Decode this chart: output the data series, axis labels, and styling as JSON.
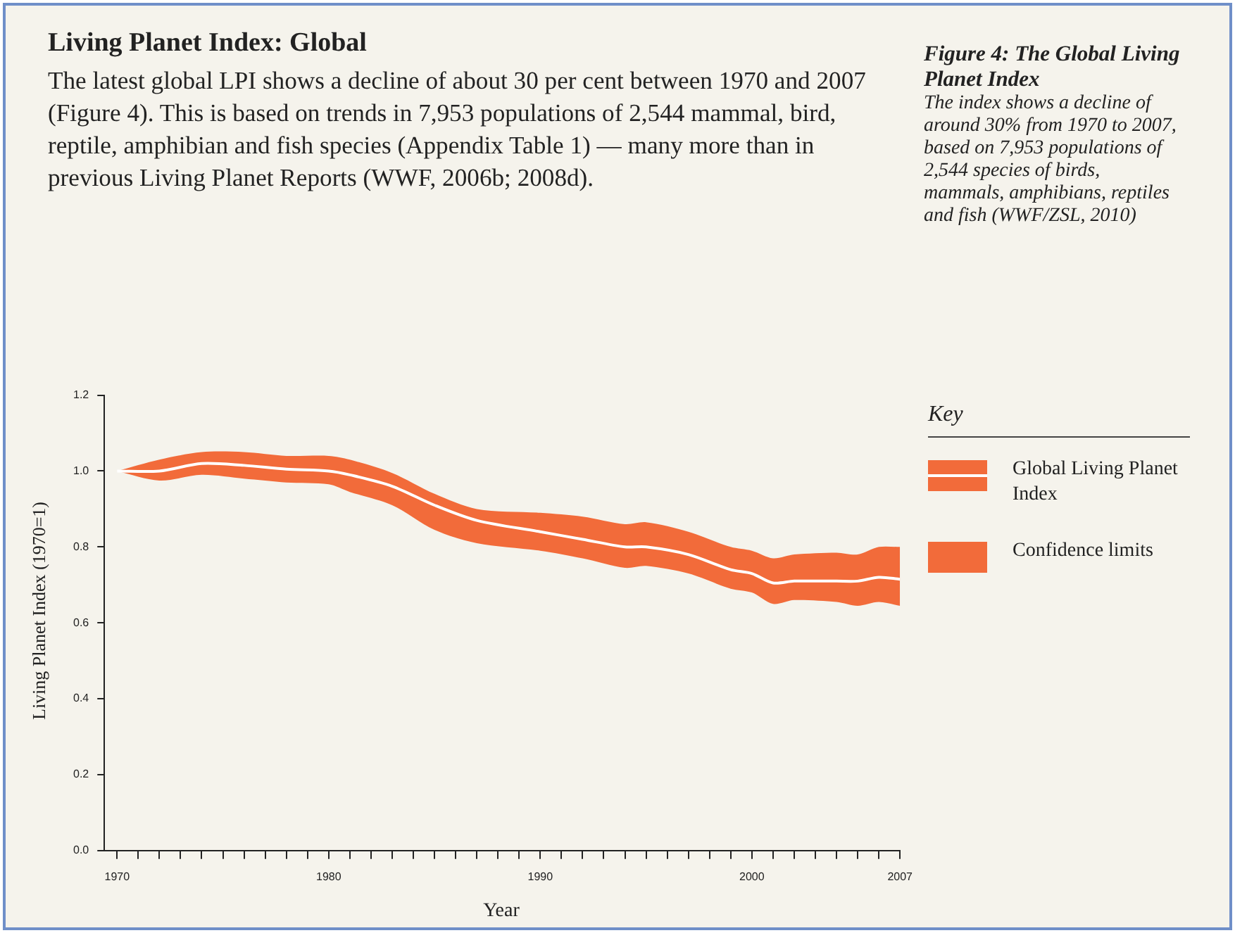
{
  "chart_data": {
    "type": "line",
    "title": "Living Planet Index: Global",
    "subtitle": "The latest global LPI shows a decline of about 30 per cent between 1970 and 2007 (Figure 4). This is based on trends in 7,953 populations of 2,544 mammal, bird, reptile, amphibian and fish species (Appendix Table 1) — many more than in previous Living Planet Reports (WWF, 2006b; 2008d).",
    "annotations": [
      "Figure 4: The Global Living Planet Index",
      "The index shows a decline of around 30% from 1970 to 2007, based on 7,953 populations of 2,544 species of birds, mammals, amphibians, reptiles and fish (WWF/ZSL, 2010)"
    ],
    "xlabel": "Year",
    "ylabel": "Living Planet Index (1970=1)",
    "legend_title": "Key",
    "legend": "right",
    "grid": false,
    "marker": "none",
    "line_style": "solid",
    "x": [
      1970,
      1972,
      1974,
      1976,
      1978,
      1980,
      1981,
      1983,
      1985,
      1987,
      1990,
      1992,
      1994,
      1995,
      1997,
      1999,
      2000,
      2001,
      2002,
      2004,
      2005,
      2006,
      2007
    ],
    "series": [
      {
        "name": "Global Living Planet Index",
        "color": "#ffffff",
        "values": [
          1.0,
          1.0,
          1.02,
          1.015,
          1.005,
          1.0,
          0.99,
          0.96,
          0.91,
          0.87,
          0.84,
          0.82,
          0.8,
          0.8,
          0.78,
          0.74,
          0.73,
          0.705,
          0.71,
          0.71,
          0.71,
          0.72,
          0.715
        ]
      },
      {
        "name": "Confidence limits",
        "color": "#f26b3a",
        "values": [
          null,
          null,
          null,
          null,
          null,
          null,
          null,
          null,
          null,
          null,
          null,
          null,
          null,
          null,
          null,
          null,
          null,
          null,
          null,
          null,
          null,
          null,
          null
        ],
        "lower": [
          1.0,
          0.975,
          0.99,
          0.98,
          0.97,
          0.965,
          0.945,
          0.91,
          0.845,
          0.81,
          0.79,
          0.77,
          0.745,
          0.75,
          0.73,
          0.69,
          0.68,
          0.65,
          0.66,
          0.655,
          0.645,
          0.655,
          0.645
        ],
        "upper": [
          1.0,
          1.03,
          1.05,
          1.05,
          1.04,
          1.04,
          1.03,
          0.995,
          0.94,
          0.9,
          0.89,
          0.88,
          0.86,
          0.865,
          0.84,
          0.8,
          0.79,
          0.77,
          0.78,
          0.785,
          0.78,
          0.8,
          0.8
        ]
      }
    ],
    "xlim": [
      1969.4,
      2007
    ],
    "ylim": [
      0,
      1.2
    ],
    "xticks": [
      1970,
      {
        "value": 1971,
        "label": null
      },
      {
        "value": 1972,
        "label": null
      },
      {
        "value": 1973,
        "label": null
      },
      {
        "value": 1974,
        "label": null
      },
      {
        "value": 1975,
        "label": null
      },
      {
        "value": 1976,
        "label": null
      },
      {
        "value": 1977,
        "label": null
      },
      {
        "value": 1978,
        "label": null
      },
      {
        "value": 1979,
        "label": null
      },
      1980,
      {
        "value": 1981,
        "label": null
      },
      {
        "value": 1982,
        "label": null
      },
      {
        "value": 1983,
        "label": null
      },
      {
        "value": 1984,
        "label": null
      },
      {
        "value": 1985,
        "label": null
      },
      {
        "value": 1986,
        "label": null
      },
      {
        "value": 1987,
        "label": null
      },
      {
        "value": 1988,
        "label": null
      },
      {
        "value": 1989,
        "label": null
      },
      1990,
      {
        "value": 1991,
        "label": null
      },
      {
        "value": 1992,
        "label": null
      },
      {
        "value": 1993,
        "label": null
      },
      {
        "value": 1994,
        "label": null
      },
      {
        "value": 1995,
        "label": null
      },
      {
        "value": 1996,
        "label": null
      },
      {
        "value": 1997,
        "label": null
      },
      {
        "value": 1998,
        "label": null
      },
      {
        "value": 1999,
        "label": null
      },
      2000,
      {
        "value": 2001,
        "label": null
      },
      {
        "value": 2002,
        "label": null
      },
      {
        "value": 2003,
        "label": null
      },
      {
        "value": 2004,
        "label": null
      },
      {
        "value": 2005,
        "label": null
      },
      {
        "value": 2006,
        "label": null
      },
      2007
    ],
    "yticks": [
      {
        "value": 0,
        "label": "0.0"
      },
      0.2,
      0.4,
      0.6,
      0.8,
      {
        "value": 1,
        "label": "1.0"
      },
      1.2
    ]
  }
}
